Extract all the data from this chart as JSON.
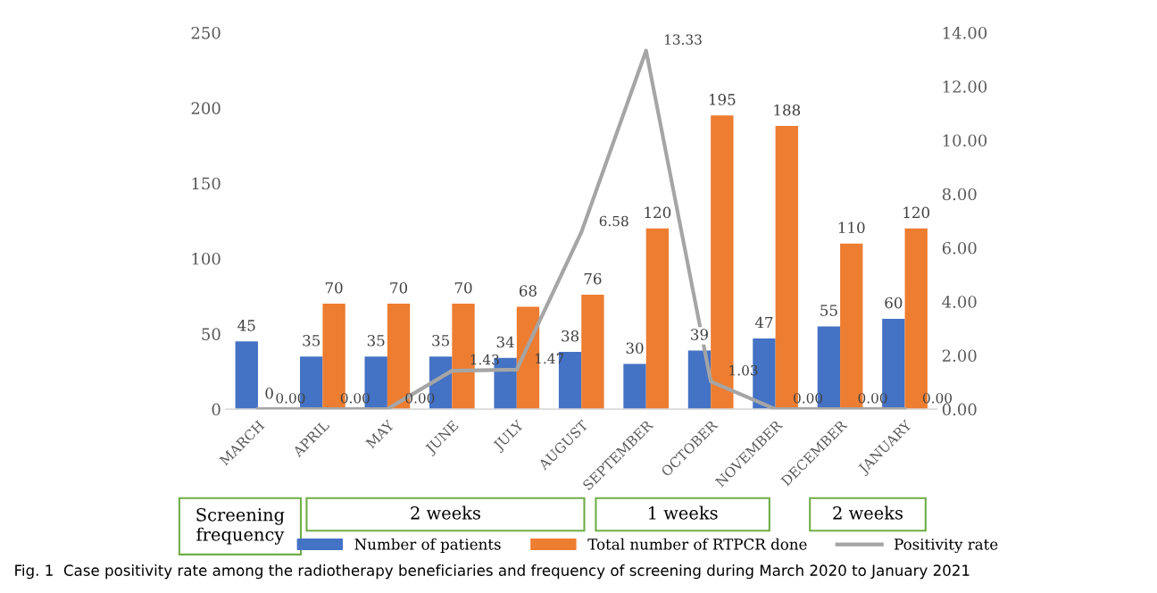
{
  "chart_data": {
    "type": "bar",
    "categories": [
      "MARCH",
      "APRIL",
      "MAY",
      "JUNE",
      "JULY",
      "AUGUST",
      "SEPTEMBER",
      "OCTOBER",
      "NOVEMBER",
      "DECEMBER",
      "JANUARY"
    ],
    "series": [
      {
        "name": "Number of patients",
        "color": "#4472c4",
        "values": [
          45,
          35,
          35,
          35,
          34,
          38,
          30,
          39,
          47,
          55,
          60
        ]
      },
      {
        "name": "Total number of RTPCR done",
        "color": "#ed7d31",
        "values": [
          0,
          70,
          70,
          70,
          68,
          76,
          120,
          195,
          188,
          110,
          120
        ]
      },
      {
        "name": "Positivity rate",
        "type": "line",
        "axis": "y2",
        "color": "#a5a5a5",
        "values": [
          0,
          0,
          0,
          1.43,
          1.47,
          6.58,
          13.33,
          1.03,
          0,
          0,
          0
        ],
        "value_labels": [
          "0.00",
          "0.00",
          "0.00",
          "1.43",
          "1.47",
          "6.58",
          "13.33",
          "1.03",
          "0.00",
          "0.00",
          "0.00"
        ]
      }
    ],
    "ylim": [
      0,
      250
    ],
    "yticks": [
      0,
      50,
      100,
      150,
      200,
      250
    ],
    "y2lim": [
      0,
      14
    ],
    "y2ticks": [
      {
        "value": 0,
        "label": "0.00"
      },
      {
        "value": 2,
        "label": "2.00"
      },
      {
        "value": 4,
        "label": "4.00"
      },
      {
        "value": 6,
        "label": "6.00"
      },
      {
        "value": 8,
        "label": "8.00"
      },
      {
        "value": 10,
        "label": "10.00"
      },
      {
        "value": 12,
        "label": "12.00"
      },
      {
        "value": 14,
        "label": "14.00"
      }
    ],
    "data_labels": true,
    "grid": false,
    "legend": "bottom",
    "annotations": [
      "Screening\nfrequency",
      "2 weeks",
      "1 weeks",
      "2 weeks",
      "Fig. 1  Case positivity rate among the radiotherapy beneficiaries and frequency of screening during March 2020 to January 2021"
    ]
  }
}
